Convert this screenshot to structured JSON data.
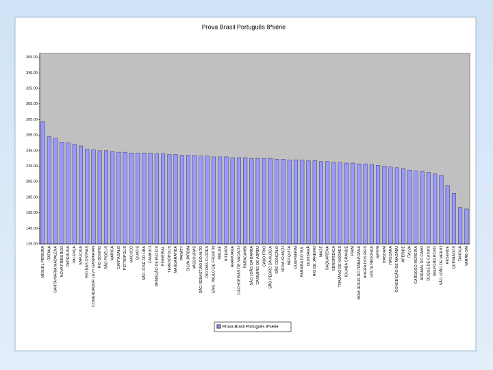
{
  "chart_data": {
    "type": "bar",
    "title": "Prova Brasil Português 8ªsérie",
    "categories": [
      "MIGUEL PEREIRA",
      "ITATIAIA",
      "SANTA MARIA MADALENA",
      "NOVA FRIBURGO",
      "ITAPERUNA",
      "VALENÇA",
      "SAPUCAIA",
      "RIO DAS OSTRAS",
      "COMENDADOR LEVY GASPARIAN",
      "RIO BONITO",
      "SÃO FIDÉLIS",
      "MARICÁ",
      "CANTAGALO",
      "PETRÓPOLIS",
      "MACUCO",
      "QUATIS",
      "SÃO JOSÉ DO UBÁ",
      "CAMBUCI",
      "ARMAÇÃO DE BÚZIOS",
      "PINHEIRAL",
      "TERESÓPOLIS",
      "MANGARATIBA",
      "PARATY",
      "SILVA JARDIM",
      "VASSOURAS",
      "SÃO SEBASTIÃO DO ALTO",
      "RIO DAS FLORES",
      "ENG. PAULO DE FRONTIN",
      "MACAÉ",
      "NITERÓI",
      "ARARUAMA",
      "CACHOEIRAS DE MACACU",
      "PARACAMBI",
      "SÃO JOÃO DA BARRA",
      "CASIMIRO DE ABREU",
      "CABO FRIO",
      "SÃO PEDRO DA ALDEIA",
      "SÃO GONÇALO",
      "NOVA IGUAÇU",
      "MESQUITA",
      "GUAPIMIRIM",
      "PARAÍBA DO SUL",
      "QUISSAMÃ",
      "RIO DE JANEIRO",
      "MAGÉ",
      "SAQUAREMA",
      "SEROPÉDICA",
      "TRAJANO DE MORAES",
      "IGUABA GRANDE",
      "PIRAÍ",
      "BOM JESUS DO ITABAPOANA",
      "ANGRA DOS REIS",
      "VOLTA REDONDA",
      "JAPERI",
      "ITABORAÍ",
      "ITAOCARA",
      "CONCEIÇÃO DE MACABU",
      "APERIBÉ",
      "ITALVA",
      "CARDOSO MOREIRA",
      "ARRAIAL DO CABO",
      "DUQUE DE CAXIAS",
      "BELFORD ROXO",
      "SÃO JOÃO DE MERITI",
      "RESENDE",
      "QUEIMADOS",
      "TANGUÁ",
      "VARRE-SAI"
    ],
    "series": [
      {
        "name": "Prova Brasil Português 8ªsérie",
        "color": "#9999ff",
        "values": [
          282,
          263,
          261,
          256,
          255,
          253,
          251,
          247,
          246,
          245,
          245,
          244,
          243,
          243,
          242,
          242,
          242,
          242,
          241,
          241,
          240,
          240,
          239,
          239,
          239,
          238,
          238,
          237,
          237,
          237,
          236,
          236,
          236,
          235,
          235,
          235,
          235,
          234,
          234,
          233,
          233,
          233,
          232,
          232,
          231,
          231,
          230,
          230,
          229,
          229,
          228,
          228,
          227,
          226,
          225,
          224,
          223,
          222,
          220,
          219,
          218,
          217,
          215,
          213,
          200,
          190,
          172,
          170
        ]
      }
    ],
    "ylim": [
      125,
      370
    ],
    "yticks": [
      {
        "value": 125,
        "label": "125.00"
      },
      {
        "value": 145,
        "label": "145.00"
      },
      {
        "value": 165,
        "label": "165.00"
      },
      {
        "value": 185,
        "label": "185.00"
      },
      {
        "value": 205,
        "label": "205.00"
      },
      {
        "value": 225,
        "label": "225.00"
      },
      {
        "value": 245,
        "label": "245.00"
      },
      {
        "value": 265,
        "label": "265.00"
      },
      {
        "value": 285,
        "label": "285.00"
      },
      {
        "value": 305,
        "label": "305.00"
      },
      {
        "value": 325,
        "label": "325.00"
      },
      {
        "value": 345,
        "label": "345.00"
      },
      {
        "value": 365,
        "label": "365.00"
      }
    ],
    "grid": false,
    "legend": "bottom"
  }
}
